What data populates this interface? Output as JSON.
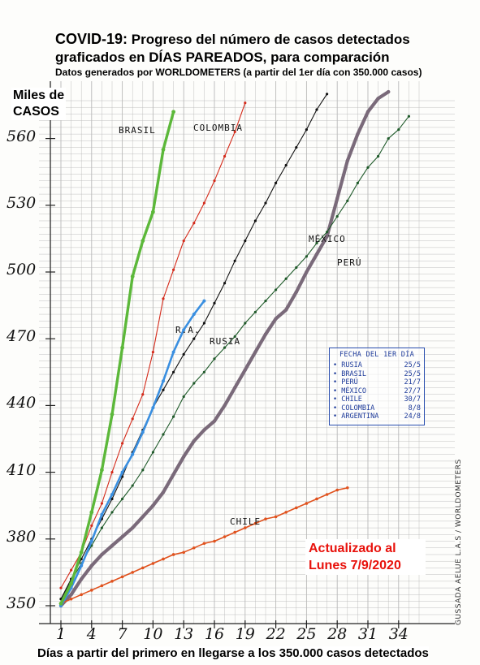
{
  "title_prefix": "COVID-19:",
  "title_line1_rest": " Progreso del número de casos detectados",
  "title_line2": "graficados en DÍAS PAREADOS, para comparación",
  "subtitle": "Datos generados por WORLDOMETERS (a partir del 1er día con 350.000 casos)",
  "ylabel_line1": "Miles de",
  "ylabel_line2": "CASOS",
  "xlabel": "Días a partir del primero en llegarse a los 350.000 casos detectados",
  "update_line1": "Actualizado al",
  "update_line2": "Lunes 7/9/2020",
  "credit": "GUSSADA AELUE L.A.S / WORLDOMETERS",
  "legend": {
    "header": "FECHA DEL 1ER DÍA",
    "rows": [
      {
        "country": "RUSIA",
        "date": "25/5"
      },
      {
        "country": "BRASIL",
        "date": "25/5"
      },
      {
        "country": "PERÚ",
        "date": "21/7"
      },
      {
        "country": "MÉXICO",
        "date": "27/7"
      },
      {
        "country": "CHILE",
        "date": "30/7"
      },
      {
        "country": "COLOMBIA",
        "date": "8/8"
      },
      {
        "country": "ARGENTINA",
        "date": "24/8"
      }
    ]
  },
  "series_labels": {
    "brasil": "BRASIL",
    "colombia": "COLOMBIA",
    "mexico": "MÉXICO",
    "peru": "PERÚ",
    "ra": "R.A.",
    "rusia": "RUSIA",
    "chile": "CHILE"
  },
  "colors": {
    "brasil": "#5cb83a",
    "colombia": "#d42a1a",
    "mexico": "#111111",
    "peru": "#7a6a7a",
    "argentina": "#3a8fe0",
    "rusia": "#1f5a2a",
    "chile": "#e0521e",
    "grid": "#b9b9b9"
  },
  "chart_data": {
    "type": "line",
    "xlabel": "Días a partir del primero en llegarse a los 350.000 casos detectados",
    "ylabel": "Miles de CASOS",
    "xlim": [
      0,
      36
    ],
    "ylim": [
      345,
      577
    ],
    "x_ticks": [
      1,
      4,
      7,
      10,
      13,
      16,
      19,
      22,
      25,
      28,
      31,
      34
    ],
    "y_ticks": [
      350,
      380,
      410,
      440,
      470,
      500,
      530,
      560
    ],
    "grid": true,
    "series": [
      {
        "name": "BRASIL",
        "x": [
          1,
          2,
          3,
          4,
          5,
          6,
          7,
          8,
          9,
          10,
          11,
          12
        ],
        "y": [
          351,
          360,
          374,
          392,
          411,
          436,
          466,
          498,
          514,
          527,
          555,
          572
        ]
      },
      {
        "name": "COLOMBIA",
        "x": [
          1,
          2,
          3,
          4,
          5,
          6,
          7,
          8,
          9,
          10,
          11,
          12,
          13,
          14,
          15,
          16,
          17,
          18,
          19
        ],
        "y": [
          358,
          366,
          374,
          386,
          396,
          410,
          423,
          434,
          445,
          464,
          488,
          501,
          514,
          522,
          531,
          541,
          552,
          563,
          576
        ]
      },
      {
        "name": "MÉXICO",
        "x": [
          1,
          2,
          3,
          4,
          5,
          6,
          7,
          8,
          9,
          10,
          11,
          12,
          13,
          14,
          15,
          16,
          17,
          18,
          19,
          20,
          21,
          22,
          23,
          24,
          25,
          26,
          27
        ],
        "y": [
          353,
          362,
          371,
          380,
          389,
          398,
          408,
          419,
          429,
          439,
          447,
          455,
          463,
          470,
          477,
          486,
          495,
          505,
          514,
          523,
          531,
          540,
          548,
          556,
          564,
          573,
          580
        ]
      },
      {
        "name": "PERÚ",
        "x": [
          1,
          2,
          3,
          4,
          5,
          6,
          7,
          8,
          9,
          10,
          11,
          12,
          13,
          14,
          15,
          16,
          17,
          18,
          19,
          20,
          21,
          22,
          23,
          24,
          25,
          26,
          27,
          28,
          29,
          30,
          31,
          32,
          33
        ],
        "y": [
          350,
          355,
          362,
          368,
          373,
          377,
          381,
          385,
          390,
          395,
          401,
          409,
          417,
          424,
          429,
          433,
          440,
          448,
          456,
          464,
          472,
          479,
          483,
          491,
          500,
          508,
          516,
          533,
          550,
          562,
          572,
          578,
          581
        ]
      },
      {
        "name": "ARGENTINA",
        "x": [
          1,
          2,
          3,
          4,
          5,
          6,
          7,
          8,
          9,
          10,
          11,
          12,
          13,
          14,
          15
        ],
        "y": [
          350,
          358,
          368,
          379,
          391,
          400,
          410,
          418,
          428,
          439,
          451,
          464,
          474,
          481,
          487
        ]
      },
      {
        "name": "RUSIA",
        "x": [
          1,
          2,
          3,
          4,
          5,
          6,
          7,
          8,
          9,
          10,
          11,
          12,
          13,
          14,
          15,
          16,
          17,
          18,
          19,
          20,
          21,
          22,
          23,
          24,
          25,
          26,
          27,
          28,
          29,
          30,
          31,
          32,
          33,
          34,
          35
        ],
        "y": [
          353,
          361,
          369,
          377,
          385,
          392,
          398,
          404,
          411,
          419,
          427,
          435,
          444,
          450,
          455,
          461,
          466,
          471,
          477,
          482,
          487,
          492,
          497,
          502,
          507,
          513,
          518,
          525,
          532,
          540,
          547,
          552,
          560,
          564,
          570
        ]
      },
      {
        "name": "CHILE",
        "x": [
          1,
          2,
          3,
          4,
          5,
          6,
          7,
          8,
          9,
          10,
          11,
          12,
          13,
          14,
          15,
          16,
          17,
          18,
          19,
          20,
          21,
          22,
          23,
          24,
          25,
          26,
          27,
          28,
          29
        ],
        "y": [
          351,
          353,
          355,
          357,
          359,
          361,
          363,
          365,
          367,
          369,
          371,
          373,
          374,
          376,
          378,
          379,
          381,
          383,
          385,
          387,
          389,
          390,
          392,
          394,
          396,
          398,
          400,
          402,
          403
        ]
      }
    ]
  }
}
